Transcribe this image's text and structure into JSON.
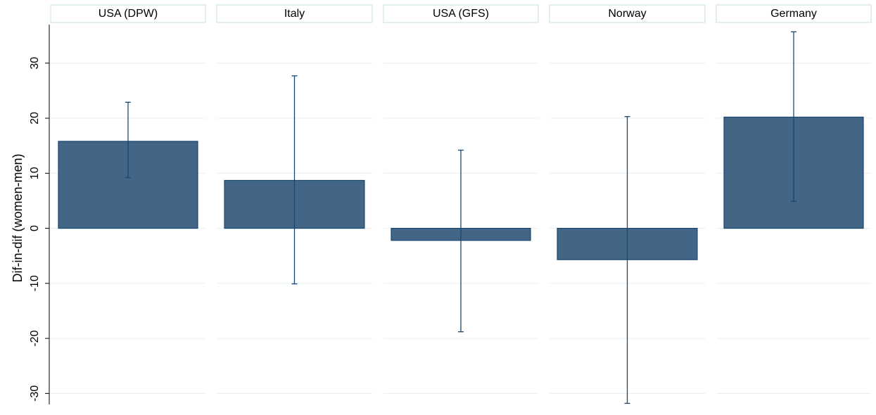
{
  "chart_data": {
    "type": "bar",
    "y_label": "Dif-in-dif (women-men)",
    "categories": [
      "USA (DPW)",
      "Italy",
      "USA (GFS)",
      "Norway",
      "Germany"
    ],
    "values": [
      15.8,
      8.7,
      -2.2,
      -5.7,
      20.2
    ],
    "lower": [
      9.2,
      -10.1,
      -18.8,
      -31.8,
      4.9
    ],
    "upper": [
      22.9,
      27.7,
      14.2,
      20.3,
      35.7
    ],
    "color": "#436686",
    "error_color": "#1a476f",
    "ylim": [
      -32,
      37
    ],
    "yticks": [
      -30,
      -20,
      -10,
      0,
      10,
      20,
      30
    ],
    "grid": true
  }
}
